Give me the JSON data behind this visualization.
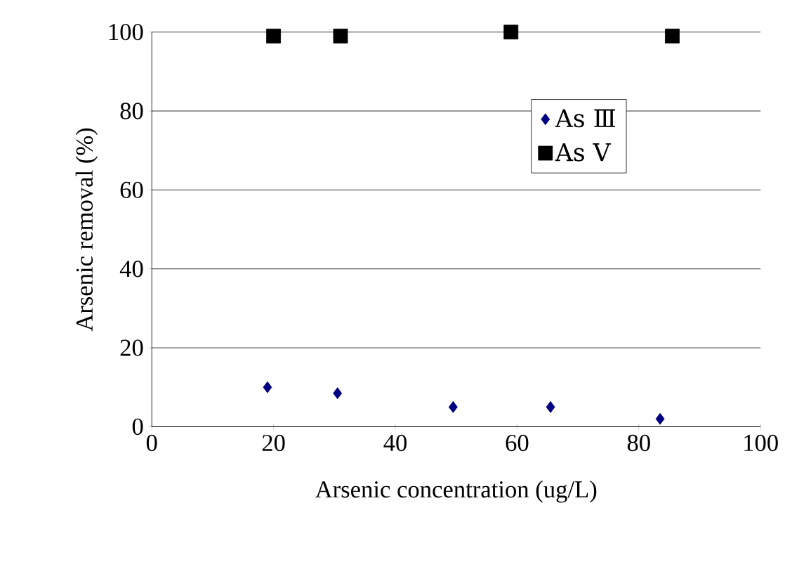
{
  "chart_data": {
    "type": "scatter",
    "xlabel": "Arsenic concentration (ug/L)",
    "ylabel": "Arsenic removal (%)",
    "xlim": [
      0,
      100
    ],
    "xticks": [
      0,
      20,
      40,
      60,
      80,
      100
    ],
    "ylim": [
      0,
      100
    ],
    "yticks": [
      0,
      20,
      40,
      60,
      80,
      100
    ],
    "grid": "y",
    "legend": "top right",
    "series": [
      {
        "name": "As Ⅲ",
        "color": "#000080",
        "marker": "diamond",
        "x": [
          19,
          30.5,
          49.5,
          65.5,
          83.5
        ],
        "values": [
          10,
          8.5,
          5,
          5,
          2
        ]
      },
      {
        "name": "As Ⅴ",
        "color": "#000000",
        "marker": "square",
        "x": [
          20,
          31,
          59,
          85.5
        ],
        "values": [
          99,
          99,
          100,
          99
        ]
      }
    ]
  }
}
